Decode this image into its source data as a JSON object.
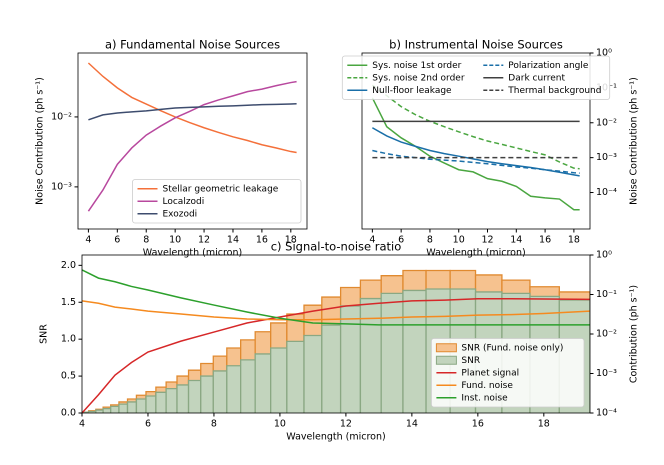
{
  "chart_data": [
    {
      "type": "line",
      "title": "a) Fundamental Noise Sources",
      "xlabel": "Wavelength (micron)",
      "ylabel": "Noise Contribution (ph s⁻¹)",
      "x": [
        4,
        5,
        6,
        7,
        8,
        9,
        10,
        11,
        12,
        13,
        14,
        15,
        16,
        17,
        18,
        18.4
      ],
      "xlim": [
        3.28,
        19.12
      ],
      "xticks": [
        4,
        6,
        8,
        10,
        12,
        14,
        16,
        18
      ],
      "ylim": [
        0.00025,
        0.082
      ],
      "ylog": true,
      "yticks": [
        {
          "value": 0.001,
          "label": "10⁻³"
        },
        {
          "value": 0.01,
          "label": "10⁻²"
        }
      ],
      "legend": "lower right",
      "legend_ncol": 1,
      "series": [
        {
          "name": "Stellar geometric leakage",
          "color": "#f4703a",
          "values": [
            0.059,
            0.038,
            0.026,
            0.019,
            0.0153,
            0.0123,
            0.01,
            0.0083,
            0.007,
            0.006,
            0.0052,
            0.0046,
            0.004,
            0.0036,
            0.0032,
            0.0031
          ]
        },
        {
          "name": "Localzodi",
          "color": "#b8489e",
          "values": [
            0.00045,
            0.0009,
            0.0021,
            0.0036,
            0.0055,
            0.0074,
            0.0097,
            0.012,
            0.015,
            0.0175,
            0.02,
            0.023,
            0.025,
            0.028,
            0.031,
            0.032
          ]
        },
        {
          "name": "Exozodi",
          "color": "#3d4c6e",
          "values": [
            0.0091,
            0.0107,
            0.0114,
            0.0118,
            0.0122,
            0.0128,
            0.0134,
            0.0137,
            0.0139,
            0.0142,
            0.0144,
            0.0147,
            0.015,
            0.0151,
            0.0153,
            0.0154
          ]
        }
      ]
    },
    {
      "type": "line",
      "title": "b) Instrumental Noise Sources",
      "xlabel": "Wavelength (micron)",
      "y2label": "Noise Contribution (ph s⁻¹)",
      "x": [
        4,
        5,
        6,
        7,
        8,
        9,
        10,
        11,
        12,
        13,
        14,
        15,
        16,
        17,
        18,
        18.4
      ],
      "xlim": [
        3.28,
        19.12
      ],
      "xticks": [
        4,
        6,
        8,
        10,
        12,
        14,
        16,
        18
      ],
      "y2lim": [
        9e-06,
        1
      ],
      "y2log": true,
      "y2ticks": [
        {
          "value": 1,
          "label": "10⁰"
        },
        {
          "value": 0.1,
          "label": "10⁻¹"
        },
        {
          "value": 0.01,
          "label": "10⁻²"
        },
        {
          "value": 0.001,
          "label": "10⁻³"
        },
        {
          "value": 0.0001,
          "label": "10⁻⁴"
        }
      ],
      "legend": "upper center",
      "legend_ncol": 2,
      "series": [
        {
          "name": "Sys. noise 1st order",
          "color": "#4aa640",
          "axis": "y2",
          "values": [
            0.052,
            0.0077,
            0.0037,
            0.0021,
            0.0011,
            0.0007,
            0.00045,
            0.00039,
            0.00025,
            0.00021,
            0.00015,
            7.8e-05,
            7e-05,
            6.5e-05,
            3.2e-05,
            3.2e-05
          ]
        },
        {
          "name": "Sys. noise 2nd order",
          "color": "#4aa640",
          "dash": true,
          "axis": "y2",
          "values": [
            0.12,
            0.06,
            0.029,
            0.017,
            0.011,
            0.0077,
            0.0055,
            0.004,
            0.003,
            0.0024,
            0.0019,
            0.0015,
            0.0012,
            0.00075,
            0.0005,
            0.00048
          ]
        },
        {
          "name": "Null-floor leakage",
          "color": "#1a6fa8",
          "axis": "y2",
          "values": [
            0.0072,
            0.0042,
            0.0028,
            0.0021,
            0.0016,
            0.0013,
            0.0011,
            0.00092,
            0.00077,
            0.00067,
            0.00059,
            0.00052,
            0.00045,
            0.00038,
            0.00032,
            0.0003
          ]
        },
        {
          "name": "Polarization angle",
          "color": "#1a6fa8",
          "dash": true,
          "axis": "y2",
          "values": [
            0.0016,
            0.0013,
            0.0011,
            0.001,
            0.0009,
            0.00085,
            0.0008,
            0.00073,
            0.00067,
            0.0006,
            0.00054,
            0.0005,
            0.00045,
            0.00041,
            0.00037,
            0.00036
          ]
        },
        {
          "name": "Dark current",
          "color": "#404040",
          "axis": "y2",
          "values": [
            0.011,
            0.011,
            0.011,
            0.011,
            0.011,
            0.011,
            0.011,
            0.011,
            0.011,
            0.011,
            0.011,
            0.011,
            0.011,
            0.011,
            0.011,
            0.011
          ]
        },
        {
          "name": "Thermal background",
          "color": "#404040",
          "dash": true,
          "axis": "y2",
          "values": [
            0.001,
            0.001,
            0.001,
            0.001,
            0.001,
            0.001,
            0.001,
            0.001,
            0.001,
            0.001,
            0.001,
            0.001,
            0.001,
            0.001,
            0.001,
            0.001
          ]
        }
      ]
    },
    {
      "type": "step",
      "title": "c) Signal-to-noise ratio",
      "xlabel": "Wavelength (micron)",
      "ylabel": "SNR",
      "ylabel_color": "#0000ff",
      "y2label": "Contribution (ph s⁻¹)",
      "xlim": [
        4,
        19.4
      ],
      "xticks": [
        4,
        6,
        8,
        10,
        12,
        14,
        16,
        18
      ],
      "ylim": [
        0,
        2.14
      ],
      "yticks": [
        {
          "value": 0,
          "label": "0.0"
        },
        0.5,
        {
          "value": 1,
          "label": "1.0"
        },
        1.5,
        {
          "value": 2,
          "label": "2.0"
        }
      ],
      "y2lim": [
        0.0001,
        1
      ],
      "y2log": true,
      "y2ticks": [
        {
          "value": 1,
          "label": "10⁰"
        },
        {
          "value": 0.1,
          "label": "10⁻¹"
        },
        {
          "value": 0.01,
          "label": "10⁻²"
        },
        {
          "value": 0.001,
          "label": "10⁻³"
        },
        {
          "value": 0.0001,
          "label": "10⁻⁴"
        }
      ],
      "legend": "lower right",
      "legend_ncol": 1,
      "bins": [
        4,
        4.2,
        4.42,
        4.64,
        4.87,
        5.12,
        5.38,
        5.65,
        5.94,
        6.24,
        6.55,
        6.88,
        7.23,
        7.6,
        7.98,
        8.39,
        8.81,
        9.25,
        9.72,
        10.21,
        10.73,
        11.27,
        11.84,
        12.44,
        13.07,
        13.73,
        14.43,
        15.16,
        15.93,
        16.73,
        17.58,
        18.47,
        19.4
      ],
      "step_series": [
        {
          "name": "SNR (Fund. noise only)",
          "color": "#f6c28f",
          "edge_color": "#e08a30",
          "values": [
            0.01,
            0.03,
            0.05,
            0.08,
            0.11,
            0.15,
            0.19,
            0.24,
            0.29,
            0.35,
            0.42,
            0.5,
            0.58,
            0.67,
            0.77,
            0.88,
            0.99,
            1.1,
            1.22,
            1.34,
            1.46,
            1.57,
            1.7,
            1.8,
            1.86,
            1.93,
            1.93,
            1.93,
            1.87,
            1.8,
            1.71,
            1.64
          ]
        },
        {
          "name": "SNR",
          "color": "#c2d4bd",
          "edge_color": "#8aa883",
          "values": [
            0.01,
            0.02,
            0.04,
            0.06,
            0.09,
            0.12,
            0.15,
            0.19,
            0.23,
            0.28,
            0.33,
            0.38,
            0.44,
            0.5,
            0.57,
            0.64,
            0.72,
            0.8,
            0.88,
            0.97,
            1.05,
            1.19,
            1.45,
            1.55,
            1.62,
            1.66,
            1.68,
            1.68,
            1.64,
            1.62,
            1.58,
            1.53
          ]
        }
      ],
      "x": [
        4,
        4.5,
        5,
        5.5,
        6,
        7,
        8,
        9,
        10,
        11,
        12,
        13,
        14,
        15,
        16,
        17,
        18,
        19.4
      ],
      "series": [
        {
          "name": "Planet signal",
          "color": "#d62728",
          "axis": "y2",
          "values": [
            0.0001,
            0.00029,
            0.00091,
            0.0019,
            0.0035,
            0.0066,
            0.0112,
            0.019,
            0.027,
            0.038,
            0.051,
            0.06,
            0.069,
            0.072,
            0.078,
            0.078,
            0.077,
            0.075
          ]
        },
        {
          "name": "Fund. noise",
          "color": "#f58a1f",
          "axis": "y2",
          "values": [
            0.069,
            0.06,
            0.048,
            0.043,
            0.038,
            0.032,
            0.027,
            0.024,
            0.023,
            0.023,
            0.024,
            0.025,
            0.027,
            0.028,
            0.03,
            0.031,
            0.033,
            0.038
          ]
        },
        {
          "name": "Inst. noise",
          "color": "#2ca02c",
          "axis": "y2",
          "values": [
            0.42,
            0.26,
            0.21,
            0.16,
            0.13,
            0.082,
            0.054,
            0.036,
            0.025,
            0.019,
            0.018,
            0.017,
            0.017,
            0.017,
            0.017,
            0.017,
            0.017,
            0.017
          ]
        }
      ]
    }
  ]
}
